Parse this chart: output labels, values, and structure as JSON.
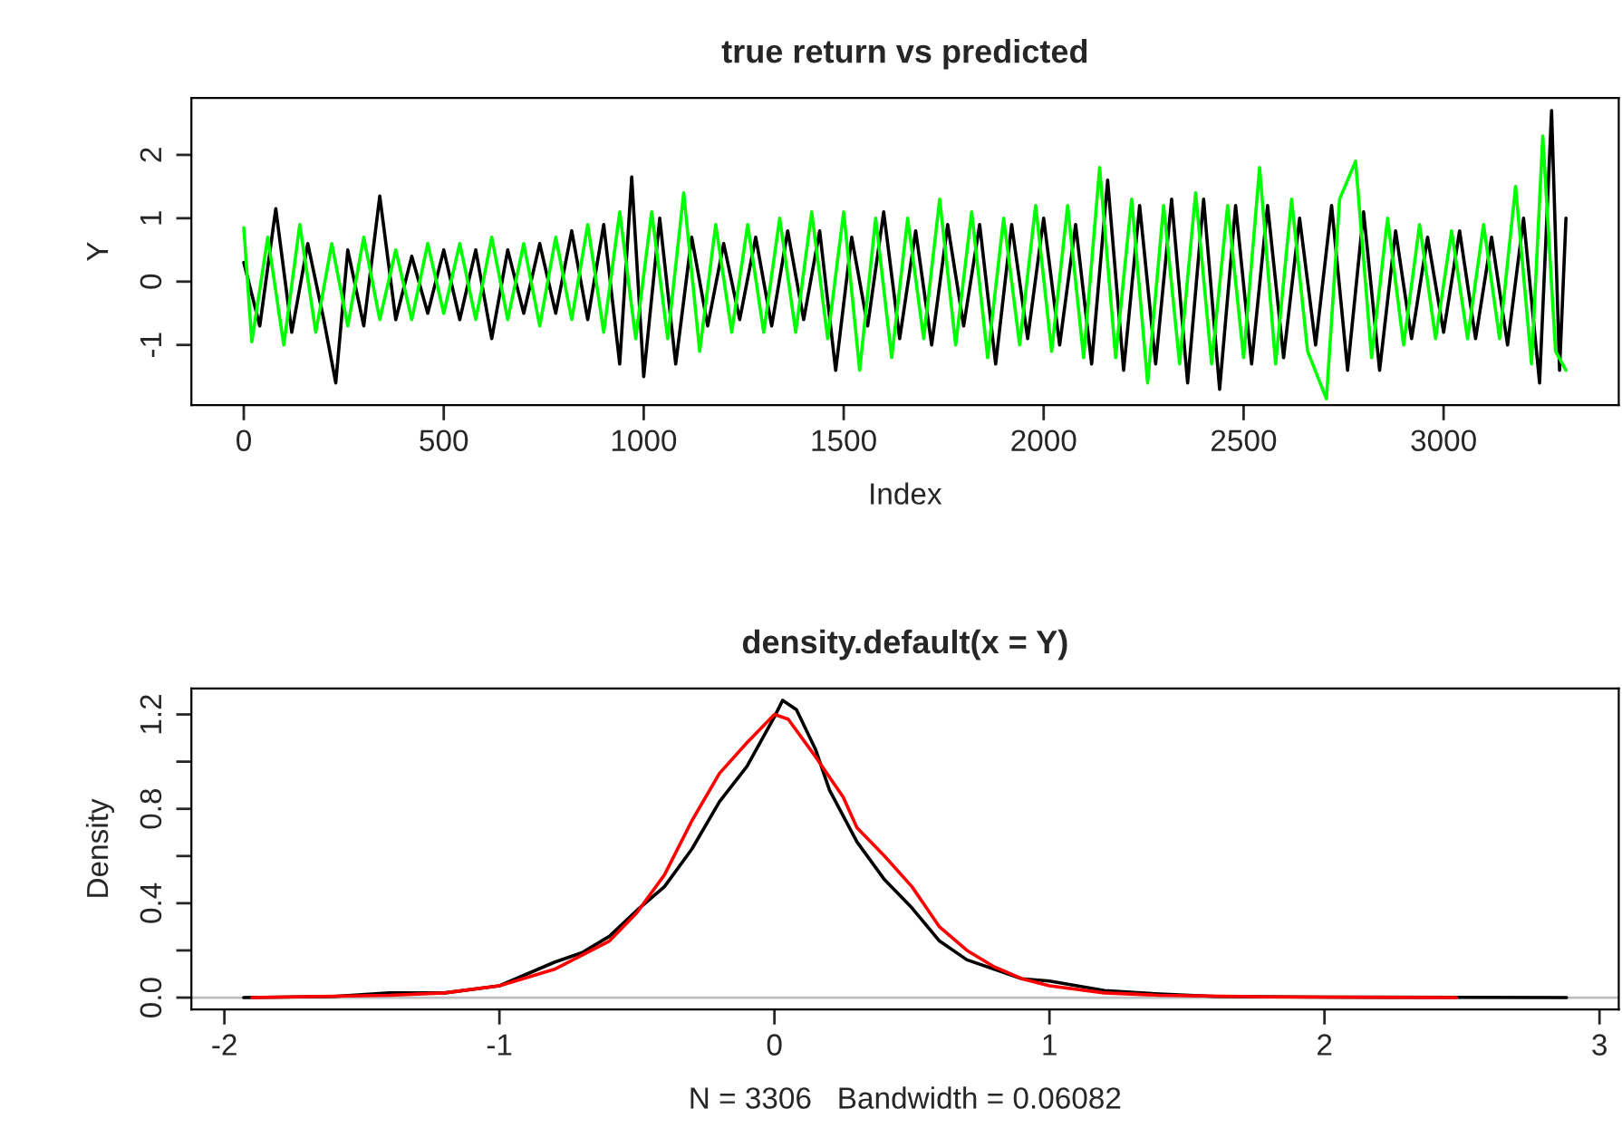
{
  "chart_data": [
    {
      "type": "line",
      "title": "true return vs predicted",
      "xlabel": "Index",
      "ylabel": "Y",
      "xlim": [
        -131,
        3438
      ],
      "ylim": [
        -1.95,
        2.9
      ],
      "xticks": [
        0,
        500,
        1000,
        1500,
        2000,
        2500,
        3000
      ],
      "yticks": [
        -1,
        0,
        1,
        2
      ],
      "grid": false,
      "legend": false,
      "line_style": "solid",
      "series": [
        {
          "color": "#000000",
          "x": [
            0,
            40,
            80,
            120,
            160,
            200,
            230,
            260,
            300,
            340,
            380,
            420,
            460,
            500,
            540,
            580,
            620,
            660,
            700,
            740,
            780,
            820,
            860,
            900,
            940,
            970,
            1000,
            1040,
            1080,
            1120,
            1160,
            1200,
            1240,
            1280,
            1320,
            1360,
            1400,
            1440,
            1480,
            1520,
            1560,
            1600,
            1640,
            1680,
            1720,
            1760,
            1800,
            1840,
            1880,
            1920,
            1960,
            2000,
            2040,
            2080,
            2120,
            2160,
            2200,
            2240,
            2280,
            2320,
            2360,
            2400,
            2440,
            2480,
            2520,
            2560,
            2600,
            2640,
            2680,
            2720,
            2760,
            2800,
            2840,
            2880,
            2920,
            2960,
            3000,
            3040,
            3080,
            3120,
            3160,
            3200,
            3240,
            3270,
            3290,
            3306
          ],
          "values": [
            0.3,
            -0.7,
            1.15,
            -0.8,
            0.6,
            -0.6,
            -1.6,
            0.5,
            -0.7,
            1.35,
            -0.6,
            0.4,
            -0.5,
            0.5,
            -0.6,
            0.5,
            -0.9,
            0.5,
            -0.5,
            0.6,
            -0.5,
            0.8,
            -0.6,
            0.9,
            -1.3,
            1.65,
            -1.5,
            1.0,
            -1.3,
            0.7,
            -0.7,
            0.6,
            -0.6,
            0.7,
            -0.7,
            0.8,
            -0.6,
            0.8,
            -1.4,
            0.7,
            -0.7,
            1.1,
            -0.9,
            0.8,
            -1.0,
            0.9,
            -0.7,
            0.9,
            -1.3,
            0.9,
            -0.9,
            1.0,
            -1.0,
            0.9,
            -1.3,
            1.6,
            -1.4,
            1.2,
            -1.3,
            1.3,
            -1.6,
            1.3,
            -1.7,
            1.2,
            -1.3,
            1.2,
            -1.2,
            1.0,
            -1.0,
            1.2,
            -1.4,
            1.1,
            -1.4,
            0.8,
            -0.9,
            0.7,
            -0.8,
            0.8,
            -0.9,
            0.7,
            -1.0,
            1.0,
            -1.6,
            2.7,
            -1.4,
            1.0
          ]
        },
        {
          "color": "#00ff00",
          "x": [
            0,
            20,
            60,
            100,
            140,
            180,
            220,
            260,
            300,
            340,
            380,
            420,
            460,
            500,
            540,
            580,
            620,
            660,
            700,
            740,
            780,
            820,
            860,
            900,
            940,
            980,
            1020,
            1060,
            1100,
            1140,
            1180,
            1220,
            1260,
            1300,
            1340,
            1380,
            1420,
            1460,
            1500,
            1540,
            1580,
            1620,
            1660,
            1700,
            1740,
            1780,
            1820,
            1860,
            1900,
            1940,
            1980,
            2020,
            2060,
            2100,
            2140,
            2180,
            2220,
            2260,
            2300,
            2340,
            2380,
            2420,
            2460,
            2500,
            2540,
            2580,
            2620,
            2660,
            2707,
            2740,
            2780,
            2820,
            2860,
            2900,
            2940,
            2980,
            3020,
            3060,
            3100,
            3140,
            3180,
            3220,
            3248,
            3280,
            3306
          ],
          "values": [
            0.85,
            -0.95,
            0.7,
            -1.0,
            0.9,
            -0.8,
            0.6,
            -0.7,
            0.7,
            -0.6,
            0.5,
            -0.6,
            0.6,
            -0.5,
            0.6,
            -0.6,
            0.7,
            -0.6,
            0.6,
            -0.7,
            0.7,
            -0.6,
            0.9,
            -0.8,
            1.1,
            -0.9,
            1.1,
            -0.9,
            1.4,
            -1.1,
            0.9,
            -0.8,
            0.9,
            -0.8,
            1.0,
            -0.8,
            1.1,
            -0.9,
            1.1,
            -1.4,
            1.0,
            -1.2,
            1.0,
            -0.9,
            1.3,
            -1.0,
            1.1,
            -1.2,
            1.0,
            -1.0,
            1.2,
            -1.1,
            1.2,
            -1.2,
            1.8,
            -1.2,
            1.3,
            -1.6,
            1.2,
            -1.3,
            1.4,
            -1.3,
            1.2,
            -1.2,
            1.8,
            -1.3,
            1.3,
            -1.1,
            -1.85,
            1.3,
            1.9,
            -1.2,
            1.0,
            -1.0,
            0.9,
            -0.9,
            0.8,
            -0.9,
            0.9,
            -0.9,
            1.5,
            -1.3,
            2.3,
            -1.1,
            -1.4
          ]
        }
      ]
    },
    {
      "type": "line",
      "title": "density.default(x = Y)",
      "xlabel": "N = 3306   Bandwidth = 0.06082",
      "ylabel": "Density",
      "xlim": [
        -2.12,
        3.07
      ],
      "ylim": [
        -0.05,
        1.31
      ],
      "xticks": [
        -2,
        -1,
        0,
        1,
        2,
        3
      ],
      "yticks": [
        {
          "value": 0,
          "label": "0.0"
        },
        {
          "value": 0.2,
          "label": null
        },
        {
          "value": 0.4,
          "label": "0.4"
        },
        {
          "value": 0.6,
          "label": null
        },
        {
          "value": 0.8,
          "label": "0.8"
        },
        {
          "value": 1.0,
          "label": null
        },
        {
          "value": 1.2,
          "label": "1.2"
        }
      ],
      "grid": false,
      "legend": false,
      "line_style": "solid",
      "ref_lines": [
        {
          "axis": "y",
          "value": 0,
          "color": "#bebebe"
        }
      ],
      "series": [
        {
          "color": "#000000",
          "x": [
            -1.93,
            -1.6,
            -1.4,
            -1.2,
            -1.0,
            -0.9,
            -0.8,
            -0.7,
            -0.6,
            -0.5,
            -0.4,
            -0.3,
            -0.2,
            -0.1,
            0.0,
            0.03,
            0.08,
            0.15,
            0.2,
            0.3,
            0.4,
            0.5,
            0.6,
            0.7,
            0.8,
            0.9,
            1.0,
            1.1,
            1.2,
            1.4,
            1.6,
            2.0,
            2.5,
            2.88
          ],
          "values": [
            0,
            0.005,
            0.02,
            0.02,
            0.05,
            0.1,
            0.15,
            0.19,
            0.26,
            0.37,
            0.47,
            0.63,
            0.83,
            0.98,
            1.19,
            1.26,
            1.22,
            1.05,
            0.88,
            0.66,
            0.5,
            0.38,
            0.24,
            0.16,
            0.12,
            0.08,
            0.07,
            0.05,
            0.03,
            0.015,
            0.005,
            0.002,
            0.001,
            0
          ]
        },
        {
          "color": "#ff0000",
          "x": [
            -1.9,
            -1.4,
            -1.2,
            -1.0,
            -0.8,
            -0.6,
            -0.5,
            -0.4,
            -0.3,
            -0.2,
            -0.1,
            0.0,
            0.05,
            0.15,
            0.25,
            0.3,
            0.4,
            0.5,
            0.6,
            0.7,
            0.8,
            0.9,
            1.0,
            1.2,
            1.4,
            1.8,
            2.48
          ],
          "values": [
            0,
            0.01,
            0.02,
            0.05,
            0.12,
            0.24,
            0.36,
            0.52,
            0.75,
            0.95,
            1.08,
            1.2,
            1.18,
            1.02,
            0.85,
            0.72,
            0.6,
            0.47,
            0.3,
            0.2,
            0.13,
            0.08,
            0.05,
            0.02,
            0.01,
            0.003,
            0
          ]
        }
      ]
    }
  ]
}
